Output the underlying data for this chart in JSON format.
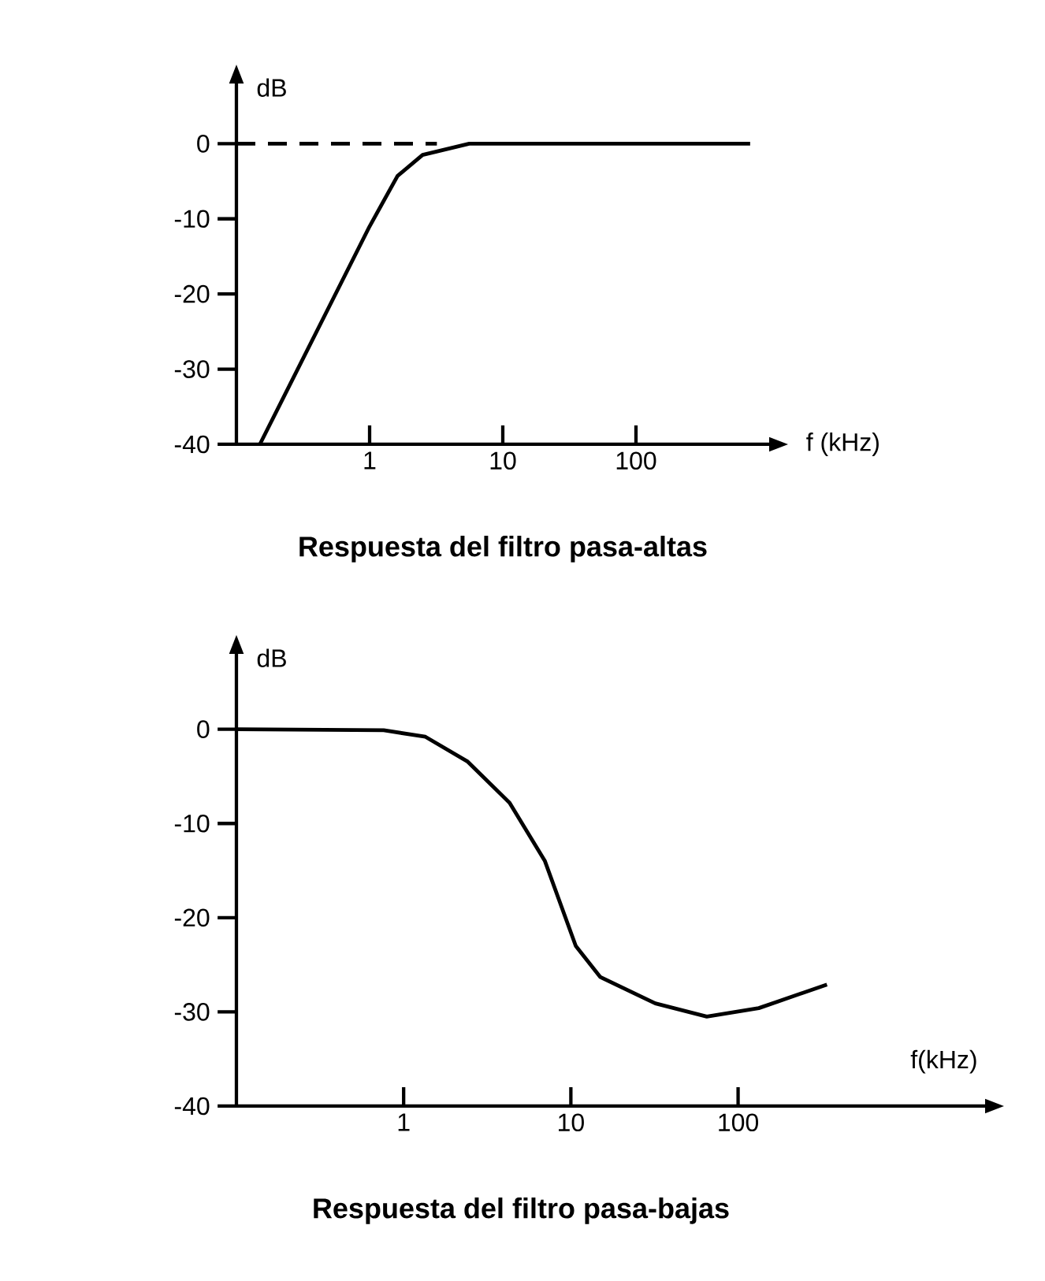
{
  "chart_data": [
    {
      "type": "line",
      "title": "Respuesta del filtro pasa-altas",
      "xlabel": "f (kHz)",
      "ylabel": "dB",
      "log": "x",
      "marker": "none",
      "xlim": [
        0.1,
        1000
      ],
      "ylim": [
        -40,
        8
      ],
      "xticks": [
        1,
        10,
        100
      ],
      "yticks": [
        0,
        -10,
        -20,
        -30,
        -40
      ],
      "series": [
        {
          "color": "#000000",
          "line_style": "dashed",
          "x": [
            0.1,
            3.2
          ],
          "values": [
            0,
            0
          ]
        },
        {
          "color": "#000000",
          "line_style": "solid",
          "x": [
            0.15,
            1,
            1.62,
            2.5,
            5.6,
            720
          ],
          "values": [
            -40,
            -11,
            -4.3,
            -1.5,
            0,
            0
          ]
        }
      ]
    },
    {
      "type": "line",
      "title": "Respuesta del filtro pasa-bajas",
      "xlabel": "f(kHz)",
      "ylabel": "dB",
      "log": "x",
      "marker": "none",
      "xlim": [
        0.1,
        3000
      ],
      "ylim": [
        -40,
        8
      ],
      "xticks": [
        1,
        10,
        100
      ],
      "yticks": [
        0,
        -10,
        -20,
        -30,
        -40
      ],
      "series": [
        {
          "color": "#000000",
          "line_style": "solid",
          "x": [
            0.1,
            0.76,
            1.35,
            2.4,
            4.3,
            7.0,
            10.7,
            15,
            32,
            65,
            133,
            340
          ],
          "values": [
            0,
            -0.1,
            -0.8,
            -3.4,
            -7.8,
            -14,
            -23,
            -26.3,
            -29.1,
            -30.5,
            -29.6,
            -27.1
          ]
        }
      ]
    }
  ]
}
